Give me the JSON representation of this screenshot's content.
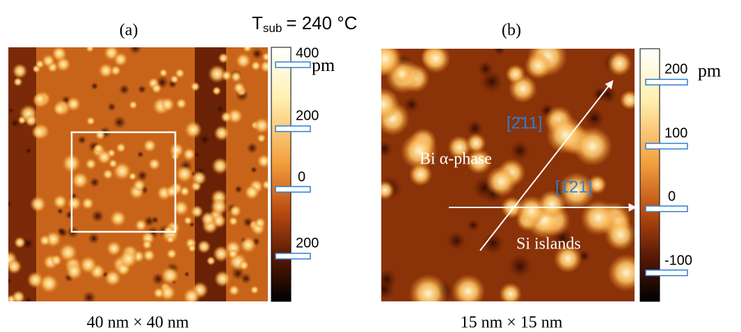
{
  "title": {
    "main": "T",
    "sub": "sub",
    "rest": "= 240 °C"
  },
  "panels": [
    {
      "label": "(a)",
      "caption": "40 nm × 40 nm",
      "unit": "pm",
      "colorbar_labels": [
        "400",
        "200",
        "0",
        "200"
      ]
    },
    {
      "label": "(b)",
      "caption": "15 nm × 15 nm",
      "unit": "pm",
      "colorbar_labels": [
        "200",
        "100",
        "0",
        "-100"
      ],
      "annotations": {
        "dir1": "[2̄11]",
        "dir2": "[1̄21]",
        "phase": "Bi α-phase",
        "islands": "Si islands"
      }
    }
  ]
}
